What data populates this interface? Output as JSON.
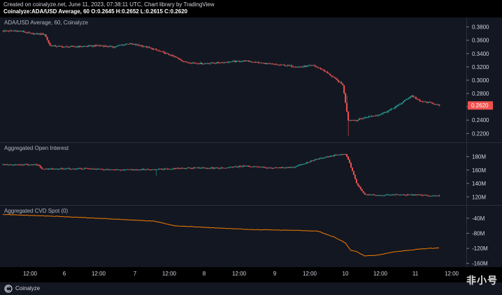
{
  "header": {
    "created_line": "Created on coinalyze.net, June 11, 2023, 07:38:11 UTC, Chart library by TradingView",
    "ohlc_line": "Coinalyze:ADA/USD Average, 60 O:0.2645 H:0.2652 L:0.2615 C:0.2620"
  },
  "panels": {
    "price_title": "ADA/USD Average, 60, Coinalyze",
    "oi_title": "Aggregated Open Interest",
    "cvd_title": "Aggregated CVD Spot (0)"
  },
  "footer": {
    "brand": "Coinalyze"
  },
  "watermark": "非小号",
  "colors": {
    "up": "#26a69a",
    "down": "#ef5350",
    "cvd": "#f57c00",
    "last_price_bg": "#ef5350"
  },
  "chart_data": [
    {
      "type": "candlestick",
      "name": "ADA/USD Average, 60",
      "x_ticks": [
        "12:00",
        "6",
        "12:00",
        "7",
        "12:00",
        "8",
        "12:00",
        "9",
        "12:00",
        "10",
        "12:00",
        "11",
        "12:00"
      ],
      "y_ticks": [
        "0.3800",
        "0.3600",
        "0.3400",
        "0.3200",
        "0.3000",
        "0.2800",
        "0.2600",
        "0.2400",
        "0.2200"
      ],
      "ylim": [
        0.213,
        0.388
      ],
      "last_price_label": "0.2620",
      "last_price": 0.262,
      "keypoints": [
        [
          0,
          0.374
        ],
        [
          12,
          0.374
        ],
        [
          20,
          0.37
        ],
        [
          30,
          0.369
        ],
        [
          34,
          0.352
        ],
        [
          44,
          0.35
        ],
        [
          60,
          0.351
        ],
        [
          70,
          0.352
        ],
        [
          80,
          0.35
        ],
        [
          90,
          0.355
        ],
        [
          100,
          0.352
        ],
        [
          110,
          0.346
        ],
        [
          122,
          0.337
        ],
        [
          132,
          0.327
        ],
        [
          145,
          0.325
        ],
        [
          160,
          0.327
        ],
        [
          175,
          0.329
        ],
        [
          190,
          0.325
        ],
        [
          205,
          0.322
        ],
        [
          215,
          0.32
        ],
        [
          225,
          0.322
        ],
        [
          232,
          0.315
        ],
        [
          240,
          0.303
        ],
        [
          246,
          0.293
        ],
        [
          250,
          0.24
        ],
        [
          256,
          0.24
        ],
        [
          264,
          0.245
        ],
        [
          272,
          0.248
        ],
        [
          280,
          0.255
        ],
        [
          286,
          0.262
        ],
        [
          292,
          0.271
        ],
        [
          296,
          0.277
        ],
        [
          302,
          0.268
        ],
        [
          310,
          0.266
        ],
        [
          316,
          0.262
        ]
      ]
    },
    {
      "type": "bar",
      "name": "Aggregated Open Interest",
      "y_ticks": [
        "180M",
        "160M",
        "140M",
        "120M"
      ],
      "ylim": [
        113,
        192
      ],
      "keypoints": [
        [
          0,
          168
        ],
        [
          25,
          168
        ],
        [
          28,
          162
        ],
        [
          60,
          162
        ],
        [
          80,
          160
        ],
        [
          110,
          161
        ],
        [
          130,
          163
        ],
        [
          160,
          163
        ],
        [
          175,
          166
        ],
        [
          195,
          163
        ],
        [
          210,
          164
        ],
        [
          225,
          175
        ],
        [
          240,
          182
        ],
        [
          248,
          184
        ],
        [
          251,
          170
        ],
        [
          256,
          140
        ],
        [
          262,
          124
        ],
        [
          270,
          122
        ],
        [
          280,
          123
        ],
        [
          300,
          123
        ],
        [
          316,
          121
        ]
      ]
    },
    {
      "type": "line",
      "name": "Aggregated CVD Spot (0)",
      "y_ticks": [
        "-40M",
        "-80M",
        "-120M",
        "-160M"
      ],
      "ylim": [
        -168,
        -16
      ],
      "keypoints": [
        [
          0,
          -30
        ],
        [
          40,
          -35
        ],
        [
          80,
          -42
        ],
        [
          110,
          -48
        ],
        [
          125,
          -60
        ],
        [
          150,
          -65
        ],
        [
          180,
          -70
        ],
        [
          210,
          -72
        ],
        [
          228,
          -74
        ],
        [
          240,
          -90
        ],
        [
          248,
          -105
        ],
        [
          252,
          -125
        ],
        [
          256,
          -128
        ],
        [
          262,
          -140
        ],
        [
          272,
          -138
        ],
        [
          282,
          -130
        ],
        [
          292,
          -126
        ],
        [
          302,
          -122
        ],
        [
          310,
          -120
        ],
        [
          316,
          -119
        ]
      ]
    }
  ]
}
